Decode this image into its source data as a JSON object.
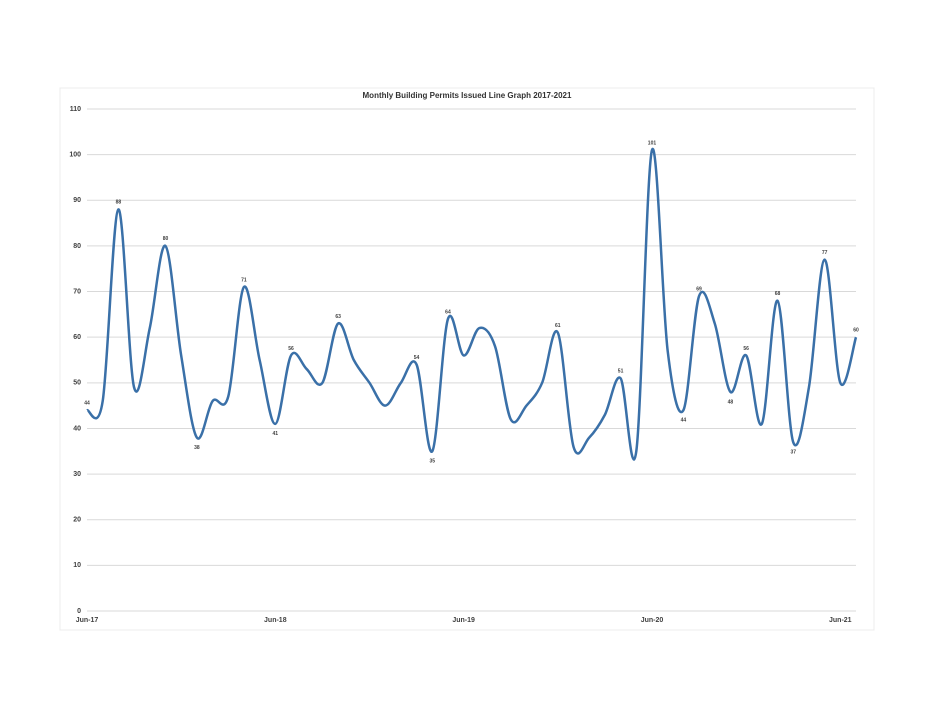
{
  "chart_data": {
    "type": "line",
    "title": "Monthly Building Permits Issued Line Graph 2017-2021",
    "categories": [
      "Jun-17",
      null,
      null,
      null,
      null,
      null,
      null,
      null,
      null,
      null,
      null,
      null,
      "Jun-18",
      null,
      null,
      null,
      null,
      null,
      null,
      null,
      null,
      null,
      null,
      null,
      "Jun-19",
      null,
      null,
      null,
      null,
      null,
      null,
      null,
      null,
      null,
      null,
      null,
      "Jun-20",
      null,
      null,
      null,
      null,
      null,
      null,
      null,
      null,
      null,
      null,
      null,
      "Jun-21",
      null
    ],
    "series": [
      {
        "name": "Building Permits",
        "color": "#3a70a8",
        "values": [
          44,
          46,
          88,
          49,
          62,
          80,
          56,
          38,
          46,
          47,
          71,
          55,
          41,
          56,
          53,
          50,
          63,
          55,
          50,
          45,
          50,
          54,
          35,
          64,
          56,
          62,
          58,
          42,
          45,
          50,
          61,
          36,
          38,
          43,
          51,
          35,
          101,
          57,
          44,
          69,
          63,
          48,
          56,
          41,
          68,
          37,
          49,
          77,
          50,
          60
        ],
        "value_labels": [
          "44",
          null,
          "88",
          null,
          null,
          "80",
          null,
          "38",
          null,
          null,
          "71",
          null,
          "41",
          "56",
          null,
          null,
          "63",
          null,
          null,
          null,
          null,
          "54",
          "35",
          "64",
          null,
          null,
          null,
          null,
          null,
          null,
          "61",
          null,
          null,
          null,
          "51",
          null,
          "101",
          null,
          "44",
          "69",
          null,
          "48",
          "56",
          null,
          "68",
          "37",
          null,
          "77",
          null,
          "60"
        ]
      }
    ],
    "ylim": [
      0,
      110
    ],
    "yticks": [
      0,
      10,
      20,
      30,
      40,
      50,
      60,
      70,
      80,
      90,
      100,
      110
    ],
    "grid": true
  }
}
